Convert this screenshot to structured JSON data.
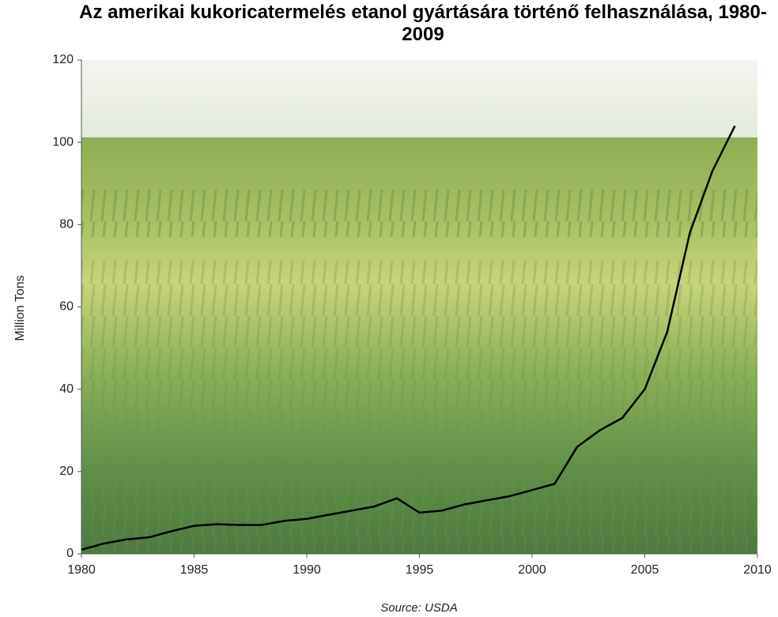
{
  "chart_data": {
    "type": "line",
    "title": "Az amerikai kukoricatermelés etanol gyártására történő felhasználása, 1980-2009",
    "y_label": "Million Tons",
    "source": "Source: USDA",
    "x": [
      1980,
      1981,
      1982,
      1983,
      1984,
      1985,
      1986,
      1987,
      1988,
      1989,
      1990,
      1991,
      1992,
      1993,
      1994,
      1995,
      1996,
      1997,
      1998,
      1999,
      2000,
      2001,
      2002,
      2003,
      2004,
      2005,
      2006,
      2007,
      2008,
      2009
    ],
    "values": [
      1,
      2.5,
      3.5,
      4,
      5.5,
      6.8,
      7.2,
      7,
      7,
      8,
      8.5,
      9.5,
      10.5,
      11.5,
      13.5,
      10,
      10.5,
      12,
      13,
      14,
      15.5,
      17,
      26,
      30,
      33,
      40,
      54,
      78,
      93,
      104
    ],
    "color": "#000000",
    "xlim": [
      1980,
      2010
    ],
    "xticks": [
      1980,
      1985,
      1990,
      1995,
      2000,
      2005,
      2010
    ],
    "ylim": [
      0,
      120
    ],
    "yticks": [
      0,
      20,
      40,
      60,
      80,
      100,
      120
    ]
  }
}
